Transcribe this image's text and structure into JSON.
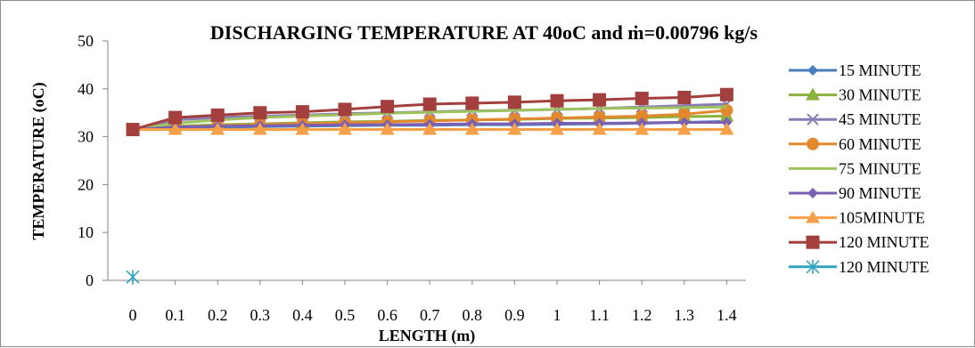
{
  "chart_data": {
    "type": "line",
    "title": "DISCHARGING  TEMPERATURE  AT  40oC and ṁ=0.00796  kg/s",
    "xlabel": "LENGTH (m)",
    "ylabel": "TEMPERATURE (oC)",
    "categories": [
      "0",
      "0.1",
      "0.2",
      "0.3",
      "0.4",
      "0.5",
      "0.6",
      "0.7",
      "0.8",
      "0.9",
      "1",
      "1.1",
      "1.2",
      "1.3",
      "1.4"
    ],
    "ylim": [
      0,
      50
    ],
    "yticks": [
      "0",
      "10",
      "20",
      "30",
      "40",
      "50"
    ],
    "grid": false,
    "legend_position": "right",
    "series": [
      {
        "name": "15 MINUTE",
        "color": "#4a7ebb",
        "marker": "diamond",
        "values": [
          31.5,
          31.8,
          32.0,
          32.1,
          32.2,
          32.3,
          32.4,
          32.4,
          32.5,
          32.5,
          32.6,
          32.7,
          32.8,
          33.0,
          33.2
        ]
      },
      {
        "name": "30 MINUTE",
        "color": "#8db13e",
        "marker": "triangle",
        "values": [
          31.5,
          32.2,
          32.5,
          32.7,
          32.9,
          33.1,
          33.2,
          33.4,
          33.5,
          33.6,
          33.8,
          33.9,
          34.0,
          34.2,
          34.3
        ]
      },
      {
        "name": "45 MINUTE",
        "color": "#8b7bb5",
        "marker": "x",
        "values": [
          31.5,
          33.5,
          34.0,
          34.3,
          34.5,
          34.8,
          35.0,
          35.2,
          35.4,
          35.5,
          35.7,
          35.9,
          36.2,
          36.5,
          36.8
        ]
      },
      {
        "name": "60 MINUTE",
        "color": "#e3892d",
        "marker": "circle",
        "values": [
          31.5,
          32.0,
          32.3,
          32.5,
          32.7,
          32.9,
          33.1,
          33.3,
          33.5,
          33.7,
          33.9,
          34.1,
          34.3,
          34.7,
          35.5
        ]
      },
      {
        "name": "75 MINUTE",
        "color": "#9cc35d",
        "marker": "none",
        "values": [
          31.5,
          32.8,
          33.5,
          34.0,
          34.3,
          34.6,
          34.9,
          35.1,
          35.3,
          35.5,
          35.7,
          35.9,
          36.0,
          36.1,
          36.2
        ]
      },
      {
        "name": "90 MINUTE",
        "color": "#7a5fb3",
        "marker": "diamond",
        "values": [
          31.5,
          32.0,
          32.2,
          32.3,
          32.4,
          32.5,
          32.5,
          32.6,
          32.7,
          32.7,
          32.8,
          32.8,
          32.9,
          33.0,
          33.0
        ]
      },
      {
        "name": "105MINUTE",
        "color": "#f7a04a",
        "marker": "triangle",
        "values": [
          31.5,
          31.5,
          31.5,
          31.5,
          31.5,
          31.5,
          31.5,
          31.5,
          31.5,
          31.5,
          31.5,
          31.5,
          31.5,
          31.5,
          31.5
        ]
      },
      {
        "name": "120 MINUTE",
        "color": "#a33f3d",
        "marker": "square",
        "values": [
          31.5,
          34.0,
          34.5,
          35.0,
          35.2,
          35.7,
          36.3,
          36.8,
          37.0,
          37.2,
          37.5,
          37.7,
          38.0,
          38.2,
          38.8
        ]
      },
      {
        "name": "120 MINUTE",
        "color": "#33a3c4",
        "marker": "star",
        "values": [
          0.7,
          null,
          null,
          null,
          null,
          null,
          null,
          null,
          null,
          null,
          null,
          null,
          null,
          null,
          null
        ]
      }
    ]
  }
}
